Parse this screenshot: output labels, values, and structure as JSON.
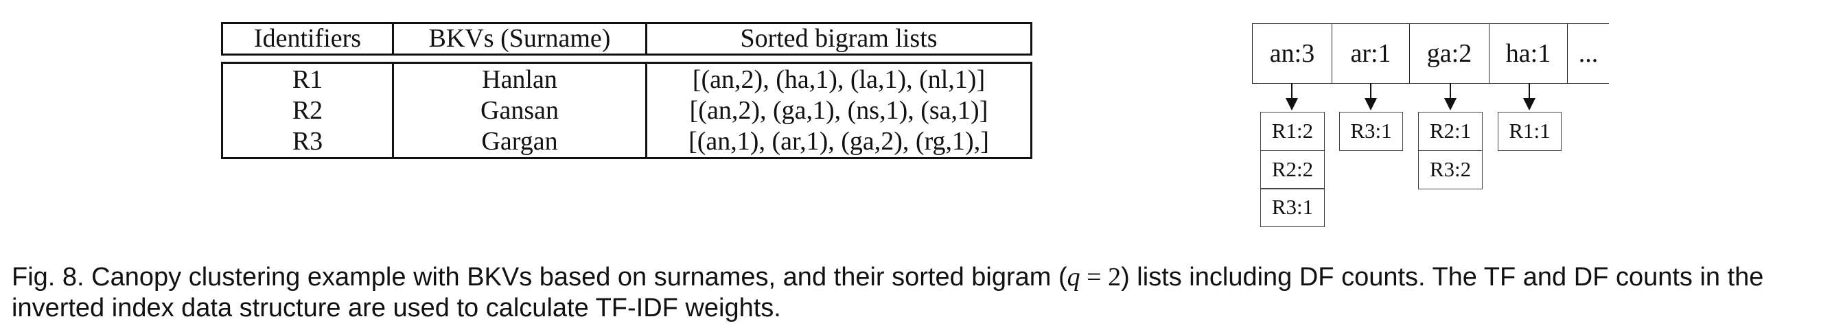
{
  "table": {
    "headers": [
      "Identifiers",
      "BKVs (Surname)",
      "Sorted bigram lists"
    ],
    "rows": [
      {
        "id": "R1",
        "bkv": "Hanlan",
        "bigrams": "[(an,2), (ha,1), (la,1), (nl,1)]"
      },
      {
        "id": "R2",
        "bkv": "Gansan",
        "bigrams": "[(an,2), (ga,1), (ns,1), (sa,1)]"
      },
      {
        "id": "R3",
        "bkv": "Gargan",
        "bigrams": "[(an,1), (ar,1), (ga,2), (rg,1),]"
      }
    ]
  },
  "index": {
    "keys": [
      "an:3",
      "ar:1",
      "ga:2",
      "ha:1",
      "..."
    ],
    "postings": [
      [
        "R1:2",
        "R2:2",
        "R3:1"
      ],
      [
        "R3:1"
      ],
      [
        "R2:1",
        "R3:2"
      ],
      [
        "R1:1"
      ]
    ]
  },
  "caption": {
    "before": "Fig. 8. Canopy clustering example with BKVs based on surnames, and their sorted bigram (",
    "math_var": "q",
    "math_rest": " = 2",
    "after": ") lists including DF counts. The TF and DF counts in the inverted index data structure are used to calculate TF-IDF weights."
  }
}
